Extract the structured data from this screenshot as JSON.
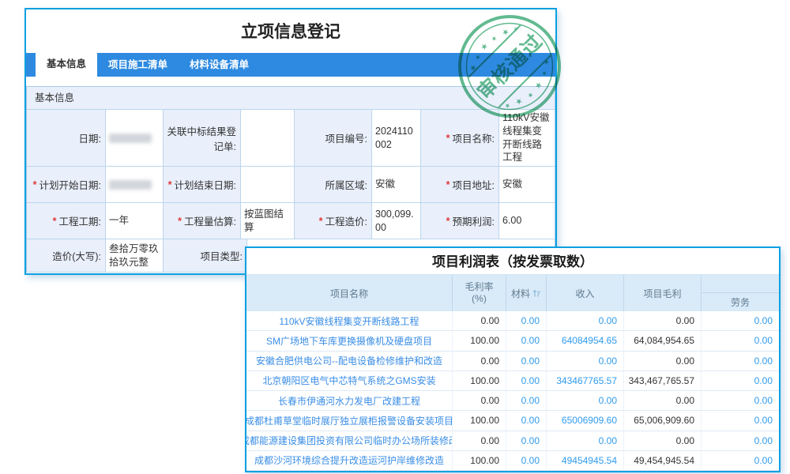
{
  "colors": {
    "tab_bar_blue": "#2e8ae0",
    "panel_border_blue": "#0aa0e0",
    "label_cell_bg": "#e9effb",
    "table_header_bg": "#d9eaf8",
    "link_blue": "#3a8ee6",
    "numeric_blue": "#2f9bed",
    "stamp_green": "#46ae7c"
  },
  "registration": {
    "title": "立项信息登记",
    "tabs": [
      {
        "label": "基本信息",
        "active": true
      },
      {
        "label": "项目施工清单",
        "active": false
      },
      {
        "label": "材料设备清单",
        "active": false
      }
    ],
    "section_title": "基本信息",
    "stamp": {
      "text": "审核通过"
    },
    "rows": [
      [
        {
          "label": "日期:"
        },
        {
          "value": "",
          "redacted": true
        },
        {
          "label": "关联中标结果登记单:"
        },
        {
          "value": ""
        },
        {
          "label": "项目编号:"
        },
        {
          "value": "2024110002"
        },
        {
          "label": "项目名称:",
          "required": true
        },
        {
          "value": "110kV安徽线程集变开断线路工程"
        }
      ],
      [
        {
          "label": "计划开始日期:",
          "required": true
        },
        {
          "value": "",
          "redacted": true
        },
        {
          "label": "计划结束日期:",
          "required": true
        },
        {
          "value": ""
        },
        {
          "label": "所属区域:"
        },
        {
          "value": "安徽"
        },
        {
          "label": "项目地址:",
          "required": true
        },
        {
          "value": "安徽"
        }
      ],
      [
        {
          "label": "工程工期:",
          "required": true
        },
        {
          "value": "一年"
        },
        {
          "label": "工程量估算:",
          "required": true
        },
        {
          "value": "按蓝图结算"
        },
        {
          "label": "工程造价:",
          "required": true
        },
        {
          "value": "300,099.00"
        },
        {
          "label": "预期利润:",
          "required": true
        },
        {
          "value": "6.00"
        }
      ],
      [
        {
          "label": "造价(大写):"
        },
        {
          "value": "叁拾万零玖拾玖元整"
        },
        {
          "label": "项目类型:"
        },
        {
          "value": ""
        }
      ]
    ]
  },
  "profit_table": {
    "title": "项目利润表（按发票取数）",
    "headers": {
      "project": "项目名称",
      "margin": "毛利率(%)",
      "material": "材料",
      "income": "收入",
      "gross": "项目毛利",
      "labor": "劳务"
    },
    "rows": [
      {
        "name": "110kV安徽线程集变开断线路工程",
        "margin": "0.00",
        "material": "0.00",
        "income": "0.00",
        "gross": "0.00",
        "labor": "0.00"
      },
      {
        "name": "SM广场地下车库更换摄像机及硬盘项目",
        "margin": "100.00",
        "material": "0.00",
        "income": "64084954.65",
        "gross": "64,084,954.65",
        "labor": "0.00"
      },
      {
        "name": "安徽合肥供电公司--配电设备检修维护和改造",
        "margin": "0.00",
        "material": "0.00",
        "income": "0.00",
        "gross": "0.00",
        "labor": "0.00"
      },
      {
        "name": "北京朝阳区电气中芯特气系统之GMS安装",
        "margin": "100.00",
        "material": "0.00",
        "income": "343467765.57",
        "gross": "343,467,765.57",
        "labor": "0.00"
      },
      {
        "name": "长春市伊通河水力发电厂改建工程",
        "margin": "0.00",
        "material": "0.00",
        "income": "0.00",
        "gross": "0.00",
        "labor": "0.00"
      },
      {
        "name": "成都杜甫草堂临时展厅独立展柜报警设备安装项目",
        "margin": "100.00",
        "material": "0.00",
        "income": "65006909.60",
        "gross": "65,006,909.60",
        "labor": "0.00"
      },
      {
        "name": "成都能源建设集团投资有限公司临时办公场所装修改",
        "margin": "0.00",
        "material": "0.00",
        "income": "0.00",
        "gross": "0.00",
        "labor": "0.00"
      },
      {
        "name": "成都沙河环境综合提升改造运河护岸维修改造",
        "margin": "100.00",
        "material": "0.00",
        "income": "49454945.54",
        "gross": "49,454,945.54",
        "labor": "0.00"
      }
    ]
  }
}
